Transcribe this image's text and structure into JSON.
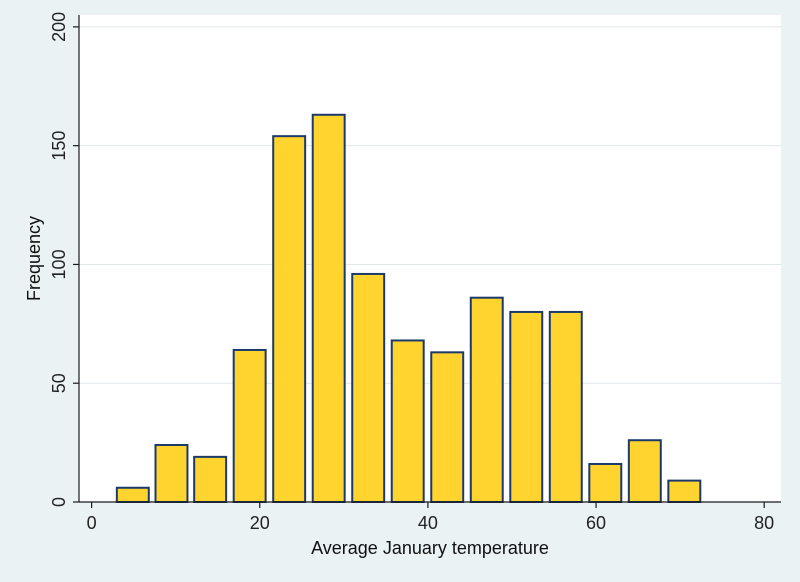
{
  "chart_data": {
    "type": "bar",
    "histogram": true,
    "bins": [
      {
        "x_start": 3.0,
        "x_end": 6.8,
        "value": 6
      },
      {
        "x_start": 7.6,
        "x_end": 11.4,
        "value": 24
      },
      {
        "x_start": 12.2,
        "x_end": 16.0,
        "value": 19
      },
      {
        "x_start": 16.9,
        "x_end": 20.7,
        "value": 64
      },
      {
        "x_start": 21.6,
        "x_end": 25.4,
        "value": 154
      },
      {
        "x_start": 26.3,
        "x_end": 30.1,
        "value": 163
      },
      {
        "x_start": 31.0,
        "x_end": 34.8,
        "value": 96
      },
      {
        "x_start": 35.7,
        "x_end": 39.5,
        "value": 68
      },
      {
        "x_start": 40.4,
        "x_end": 44.2,
        "value": 63
      },
      {
        "x_start": 45.1,
        "x_end": 48.9,
        "value": 86
      },
      {
        "x_start": 49.8,
        "x_end": 53.6,
        "value": 80
      },
      {
        "x_start": 54.5,
        "x_end": 58.3,
        "value": 80
      },
      {
        "x_start": 59.2,
        "x_end": 63.0,
        "value": 16
      },
      {
        "x_start": 63.9,
        "x_end": 67.7,
        "value": 26
      },
      {
        "x_start": 68.6,
        "x_end": 72.4,
        "value": 9
      }
    ],
    "xlabel": "Average January temperature",
    "ylabel": "Frequency",
    "xlim": [
      -1.5,
      82.0
    ],
    "ylim": [
      0,
      205
    ],
    "xticks": [
      0,
      20,
      40,
      60,
      80
    ],
    "yticks": [
      0,
      50,
      100,
      150,
      200
    ],
    "grid": "horizontal",
    "colors": {
      "bar_fill": "#ffd42e",
      "bar_stroke": "#1b3a6b",
      "axis": "#1a1a1a",
      "grid": "#e1e8ea",
      "plot_bg": "#ffffff",
      "page_bg": "#eaf2f3"
    }
  }
}
